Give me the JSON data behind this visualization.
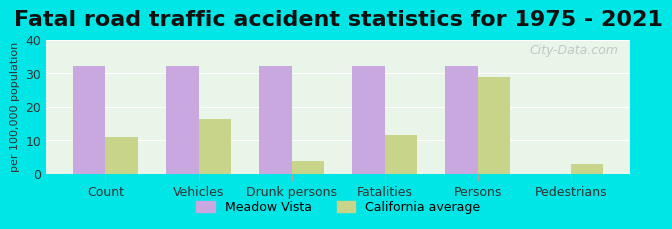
{
  "title": "Fatal road traffic accident statistics for 1975 - 2021",
  "categories": [
    "Count",
    "Vehicles",
    "Drunk persons",
    "Fatalities",
    "Persons",
    "Pedestrians"
  ],
  "meadow_vista": [
    32,
    32,
    32,
    32,
    32,
    0
  ],
  "california_avg": [
    11,
    16.5,
    4,
    11.5,
    29,
    3
  ],
  "meadow_color": "#c9a8e0",
  "california_color": "#c8d48a",
  "ylabel": "per 100,000 population",
  "ylim": [
    0,
    40
  ],
  "yticks": [
    0,
    10,
    20,
    30,
    40
  ],
  "background_color": "#00e5e5",
  "plot_bg_color": "#e8f5e8",
  "title_fontsize": 16,
  "watermark": "City-Data.com",
  "bar_width": 0.35
}
